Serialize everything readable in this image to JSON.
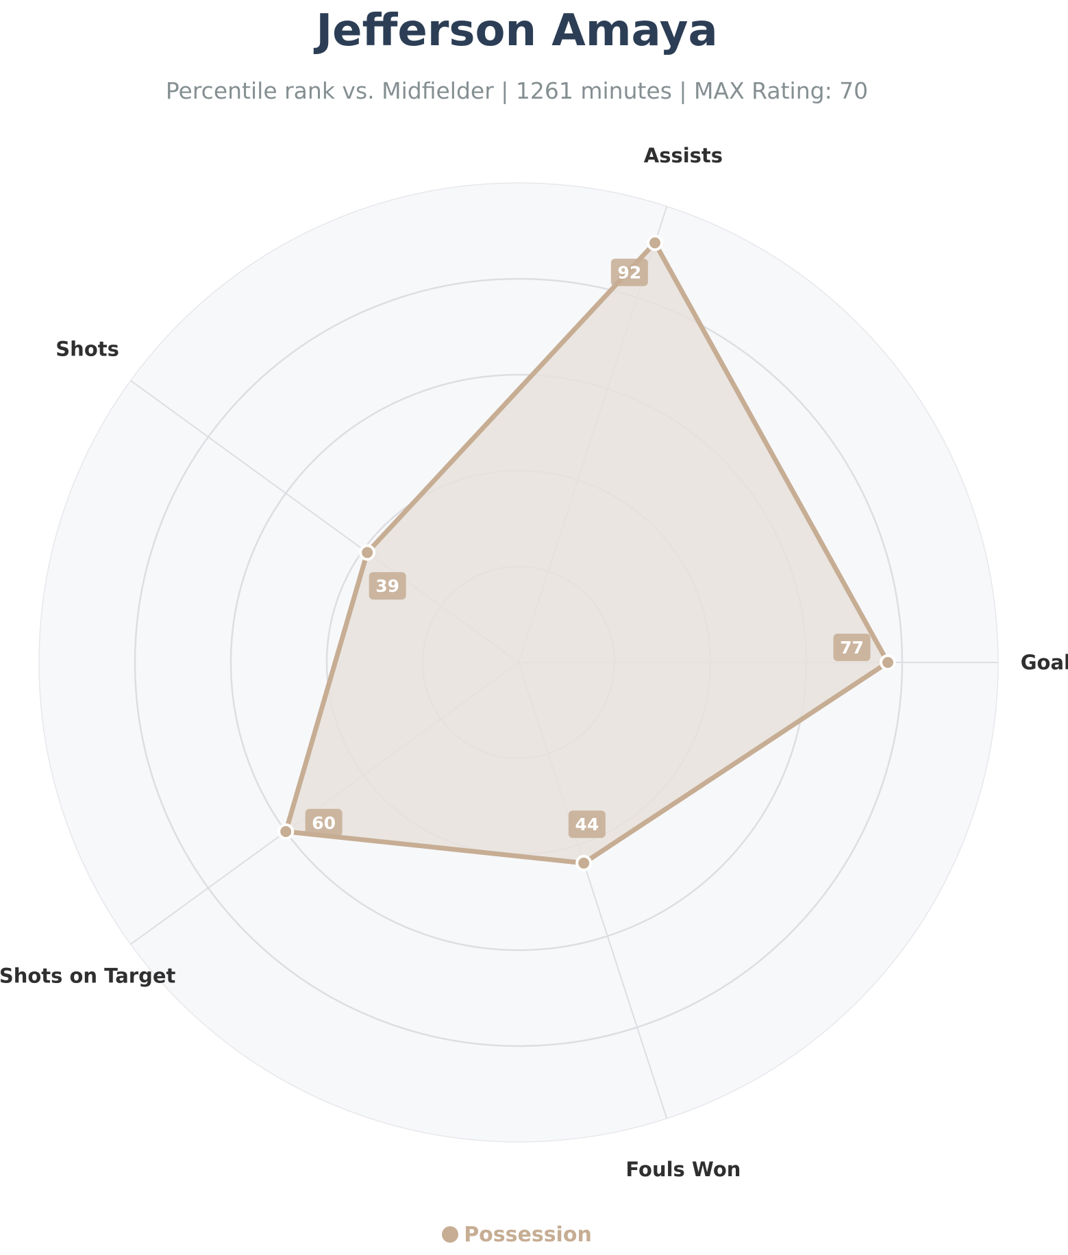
{
  "header": {
    "title": "Jefferson Amaya",
    "subtitle": "Percentile rank vs. Midfielder | 1261 minutes | MAX Rating: 70"
  },
  "legend": {
    "label": "Possession"
  },
  "colors": {
    "series": "#c6ad93",
    "series_fill": "#e8e2da",
    "badge": "#c6ad93",
    "grid": "#dedee2",
    "background": "#f7f8fa",
    "title": "#2c3e55",
    "subtitle": "#858f92"
  },
  "chart_data": {
    "type": "radar",
    "categories": [
      "Goals",
      "Assists",
      "Shots",
      "Shots on Target",
      "Fouls Won"
    ],
    "series": [
      {
        "name": "Possession",
        "values": [
          77,
          92,
          39,
          60,
          44
        ]
      }
    ],
    "rlim": [
      0,
      100
    ],
    "grid": true,
    "legend_position": "bottom-center"
  }
}
